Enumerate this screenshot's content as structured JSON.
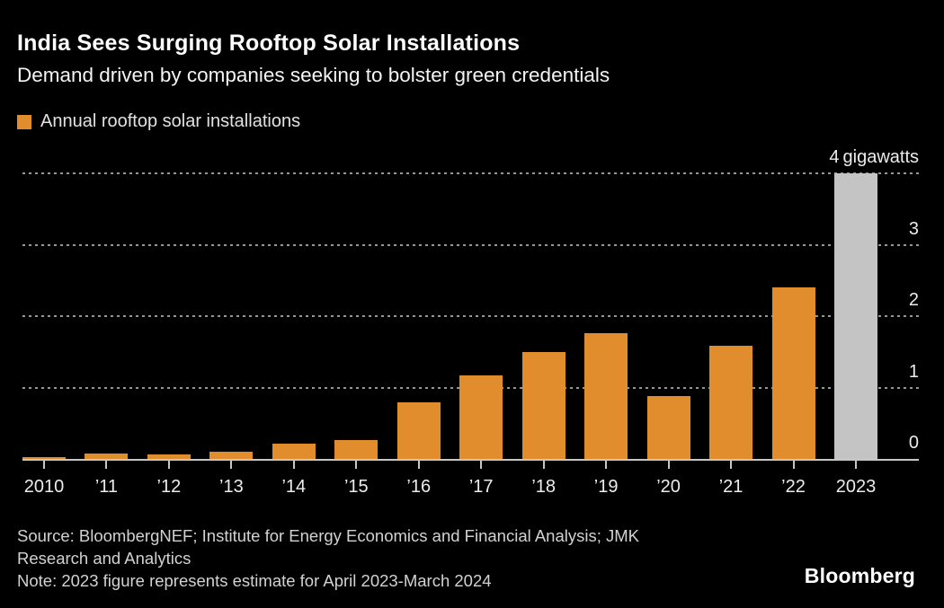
{
  "header": {
    "title": "India Sees Surging Rooftop Solar Installations",
    "subtitle": "Demand driven by companies seeking to bolster green credentials"
  },
  "legend": {
    "label": "Annual rooftop solar installations"
  },
  "chart_data": {
    "type": "bar",
    "title": "India Sees Surging Rooftop Solar Installations",
    "subtitle": "Demand driven by companies seeking to bolster green credentials",
    "legend_label": "Annual rooftop solar installations",
    "categories": [
      "2010",
      "’11",
      "’12",
      "’13",
      "’14",
      "’15",
      "’16",
      "’17",
      "’18",
      "’19",
      "’20",
      "’21",
      "’22",
      "2023"
    ],
    "values": [
      0.02,
      0.08,
      0.06,
      0.1,
      0.22,
      0.27,
      0.79,
      1.17,
      1.5,
      1.76,
      0.88,
      1.58,
      2.4,
      4.0
    ],
    "unit": "gigawatts",
    "ylim": [
      0,
      4
    ],
    "yticks": [
      {
        "value": 4,
        "label": "4 gigawatts"
      },
      {
        "value": 3,
        "label": "3"
      },
      {
        "value": 2,
        "label": "2"
      },
      {
        "value": 1,
        "label": "1"
      },
      {
        "value": 0,
        "label": "0"
      }
    ],
    "grid": "horizontal-dashed",
    "legend_position": "top-left",
    "series_color": "#E18D2D",
    "estimate_color": "#C4C4C4",
    "estimate_category": "2023"
  },
  "footer": {
    "lines": [
      "Source: BloombergNEF; Institute for Energy Economics and Financial Analysis; JMK",
      "Research and Analytics",
      "Note: 2023 figure represents estimate for April 2023-March 2024"
    ],
    "logo": "Bloomberg"
  }
}
